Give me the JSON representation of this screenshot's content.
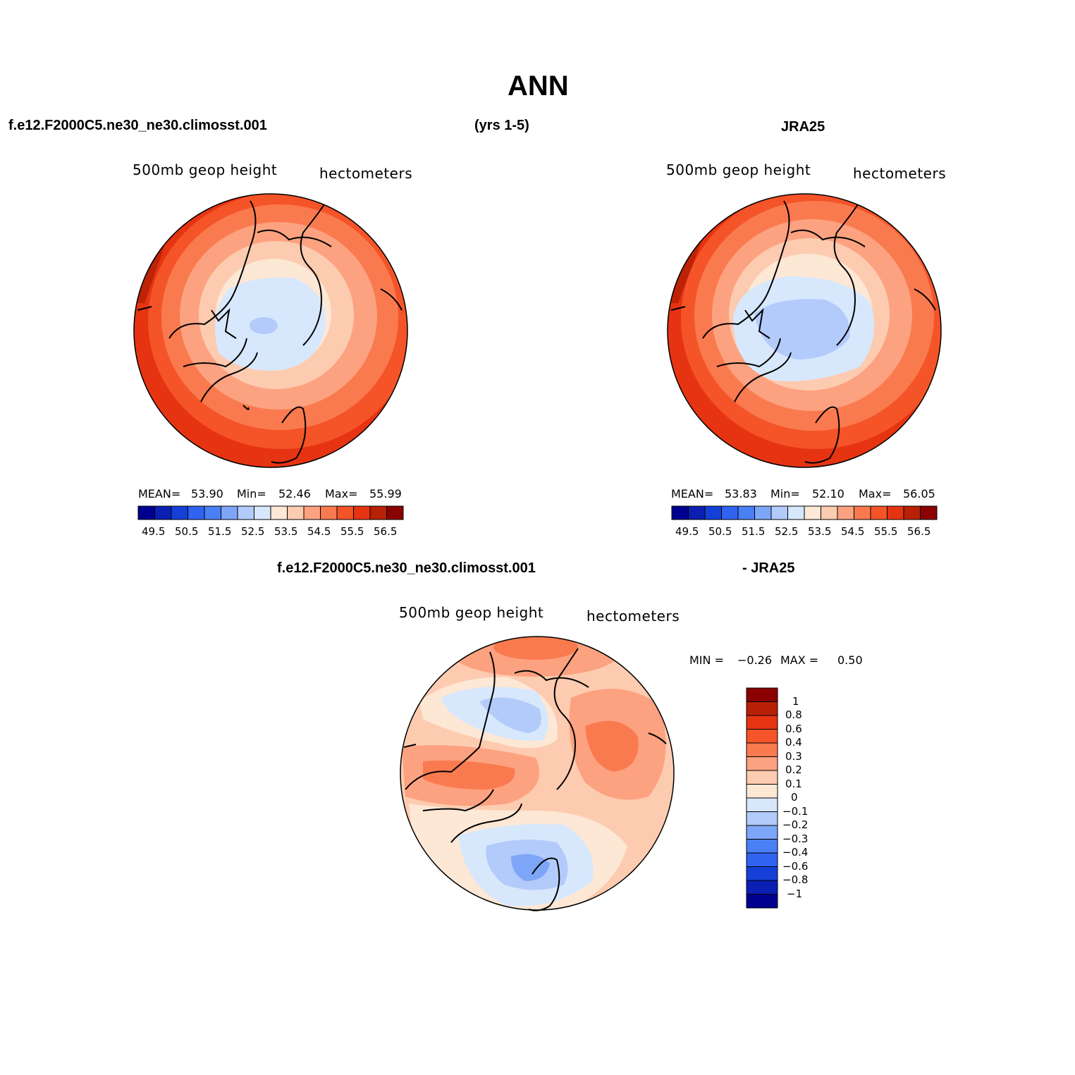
{
  "title": "ANN",
  "header": {
    "left": "f.e12.F2000C5.ne30_ne30.climosst.001",
    "center": "(yrs 1-5)",
    "right": "JRA25"
  },
  "diff_header": {
    "left": "f.e12.F2000C5.ne30_ne30.climosst.001",
    "right": "- JRA25"
  },
  "panels": [
    {
      "name": "model",
      "variable": "500mb geop height",
      "units": "hectometers",
      "mean_label": "MEAN=",
      "mean": "53.90",
      "min_label": "Min=",
      "min": "52.46",
      "max_label": "Max=",
      "max": "55.99",
      "levels": [
        "49.5",
        "50.5",
        "51.5",
        "52.5",
        "53.5",
        "54.5",
        "55.5",
        "56.5"
      ]
    },
    {
      "name": "obs",
      "variable": "500mb geop height",
      "units": "hectometers",
      "mean_label": "MEAN=",
      "mean": "53.83",
      "min_label": "Min=",
      "min": "52.10",
      "max_label": "Max=",
      "max": "56.05",
      "levels": [
        "49.5",
        "50.5",
        "51.5",
        "52.5",
        "53.5",
        "54.5",
        "55.5",
        "56.5"
      ]
    }
  ],
  "diff": {
    "variable": "500mb geop height",
    "units": "hectometers",
    "min_label": "MIN =",
    "min": "−0.26",
    "max_label": "MAX =",
    "max": "0.50",
    "levels": [
      "1",
      "0.8",
      "0.6",
      "0.4",
      "0.3",
      "0.2",
      "0.1",
      "0",
      "−0.1",
      "−0.2",
      "−0.3",
      "−0.4",
      "−0.6",
      "−0.8",
      "−1"
    ]
  },
  "colors": {
    "scale": [
      "#00008f",
      "#0b1fb3",
      "#1440d8",
      "#2f63f0",
      "#4a80f5",
      "#7ea6f8",
      "#b3cbfa",
      "#d7e8fd",
      "#fde7d5",
      "#fdcbb0",
      "#fca280",
      "#fa7a4f",
      "#f45428",
      "#e63412",
      "#b82106",
      "#8b0000"
    ],
    "diff_scale": [
      "#8b0000",
      "#b82106",
      "#e63412",
      "#f45428",
      "#fa7a4f",
      "#fca280",
      "#fdcbb0",
      "#fde7d5",
      "#d7e8fd",
      "#b3cbfa",
      "#7ea6f8",
      "#4a80f5",
      "#2f63f0",
      "#1440d8",
      "#0b1fb3",
      "#00008f"
    ]
  }
}
